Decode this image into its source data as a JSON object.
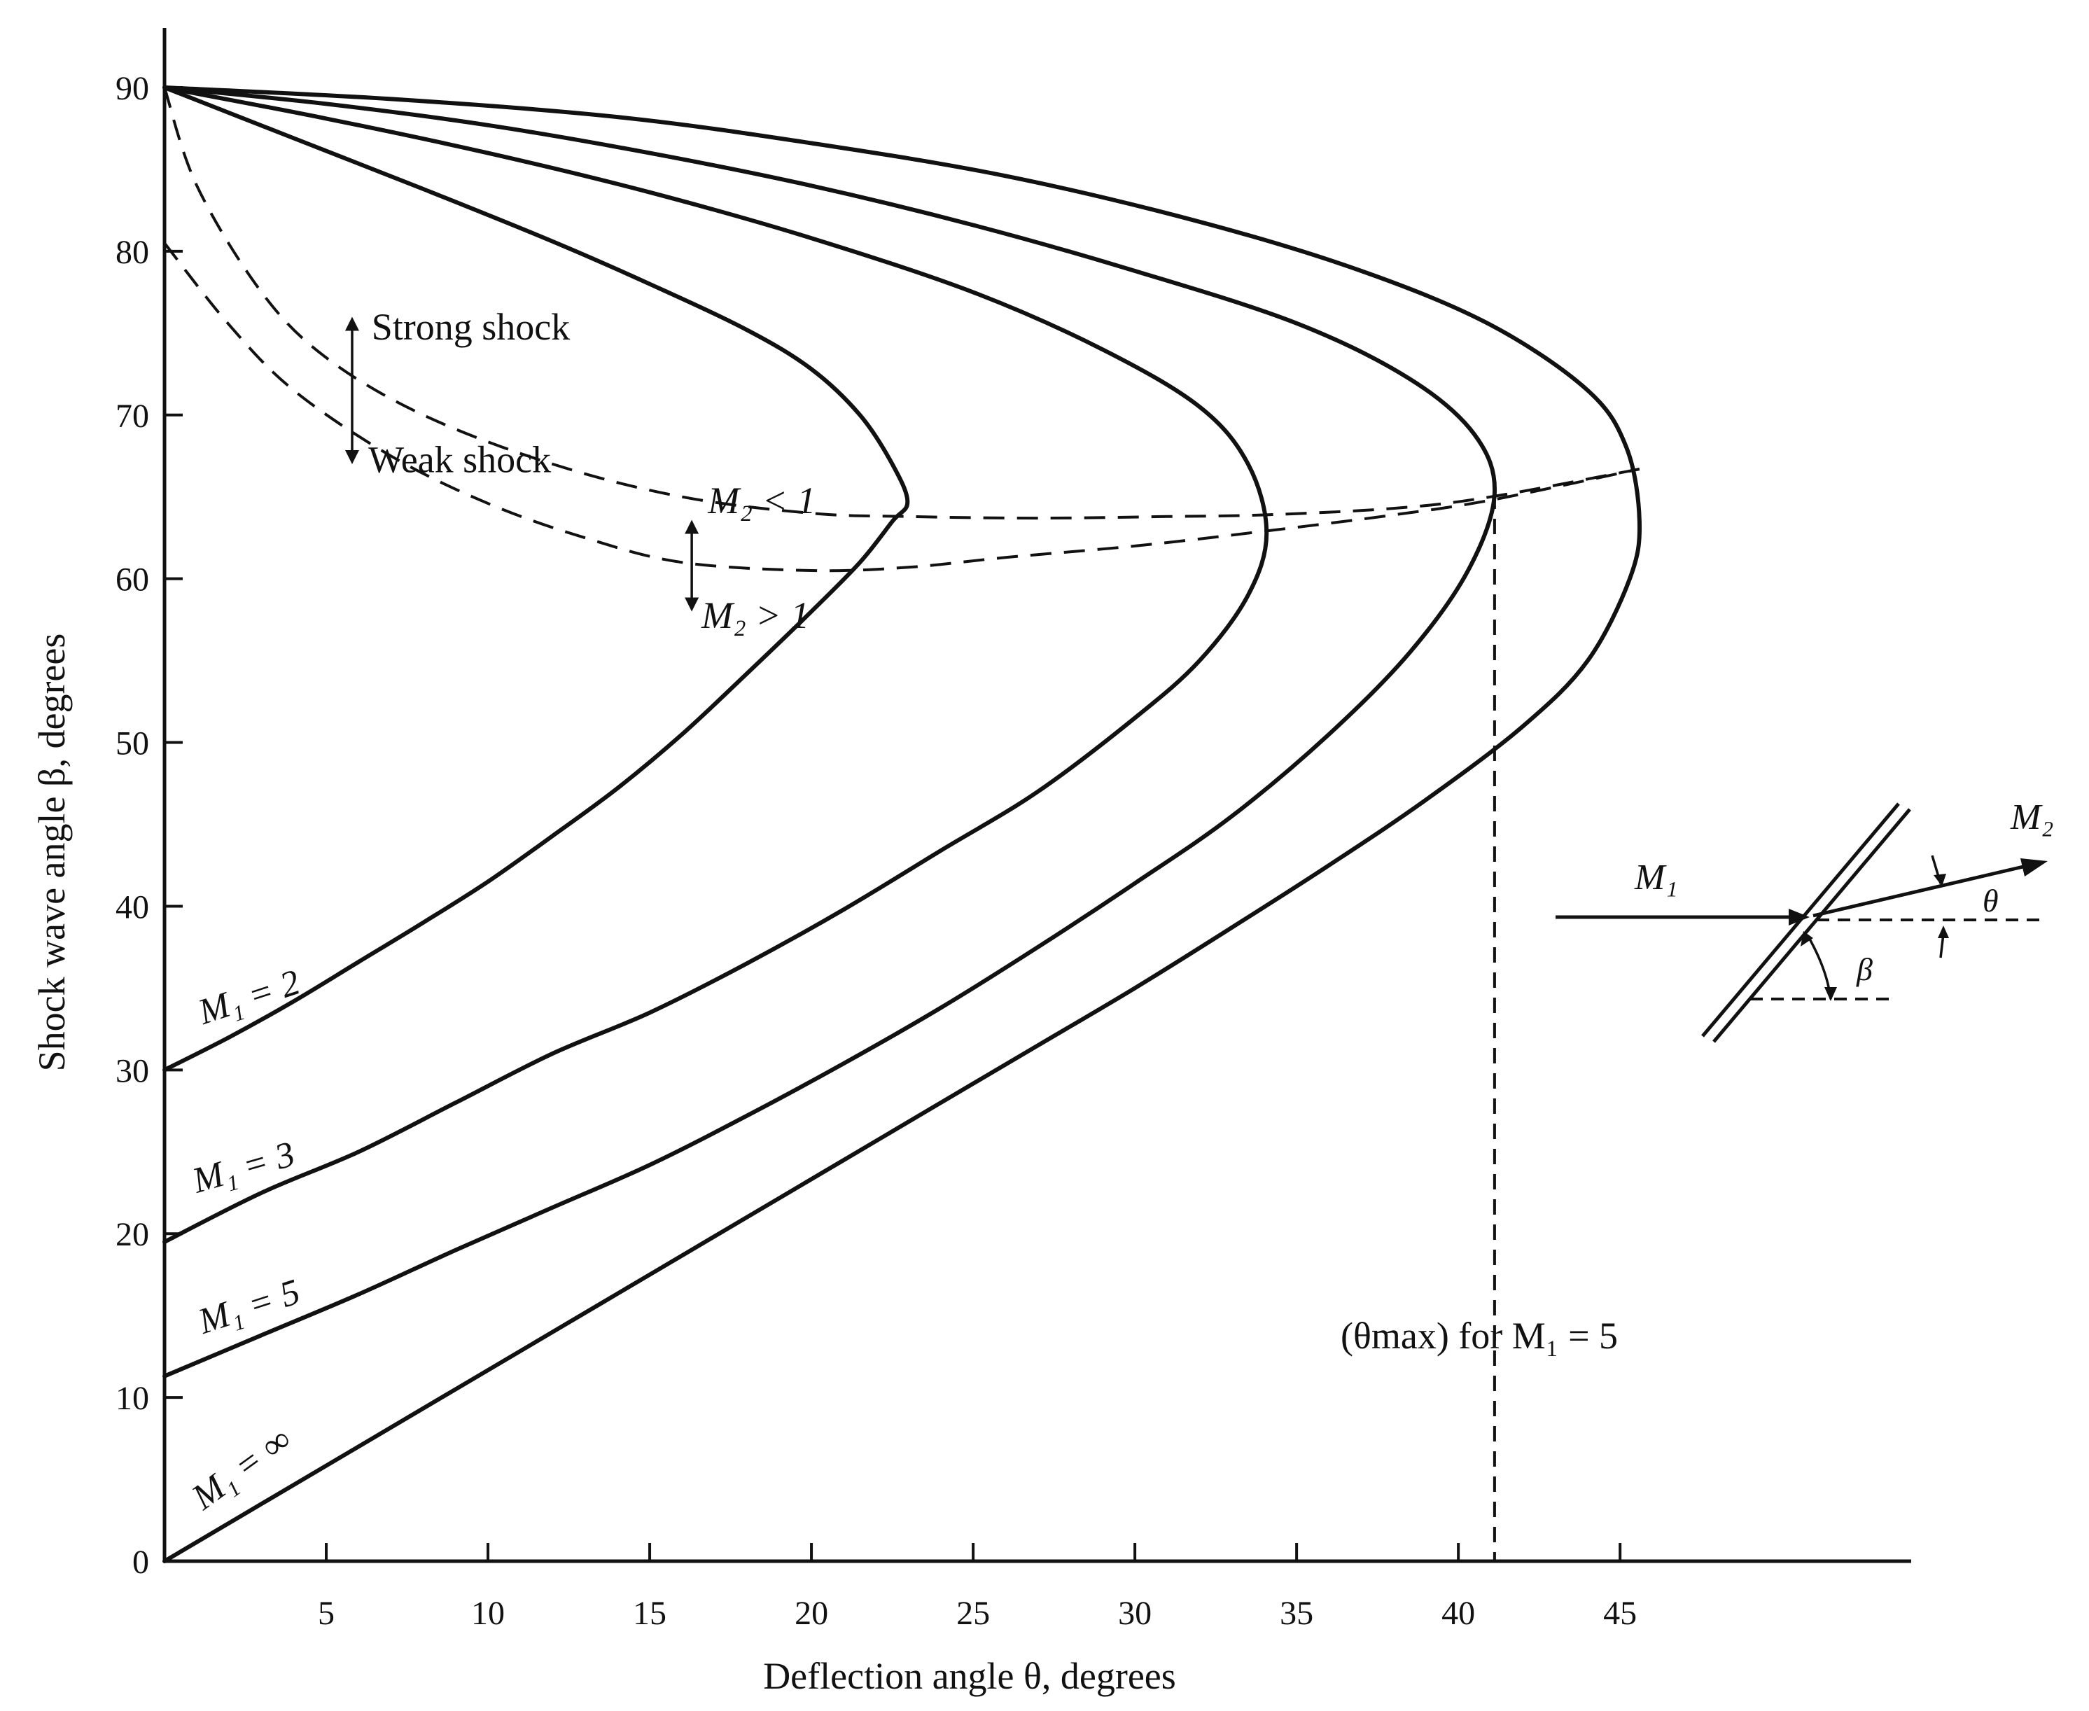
{
  "chart_data": {
    "type": "line",
    "xlabel": "Deflection angle θ, degrees",
    "ylabel": "Shock wave angle β, degrees",
    "x_ticks": [
      5,
      10,
      15,
      20,
      25,
      30,
      35,
      40,
      45
    ],
    "y_ticks": [
      0,
      10,
      20,
      30,
      40,
      50,
      60,
      70,
      80,
      90
    ],
    "xlim": [
      0,
      54
    ],
    "ylim": [
      0,
      90
    ],
    "grid": false,
    "series": [
      {
        "name": "M₁ = 2",
        "label": "M1 = 2",
        "points": [
          [
            0,
            30.0
          ],
          [
            2,
            32.0
          ],
          [
            4,
            34.2
          ],
          [
            6,
            36.6
          ],
          [
            8,
            39.0
          ],
          [
            10,
            41.5
          ],
          [
            12,
            44.3
          ],
          [
            14,
            47.2
          ],
          [
            16,
            50.5
          ],
          [
            18,
            54.2
          ],
          [
            20,
            58.0
          ],
          [
            21.5,
            61.0
          ],
          [
            22.5,
            63.5
          ],
          [
            22.97,
            64.7
          ],
          [
            22.5,
            67.0
          ],
          [
            21.5,
            70.0
          ],
          [
            20,
            72.8
          ],
          [
            18,
            75.2
          ],
          [
            15,
            78.0
          ],
          [
            12,
            80.6
          ],
          [
            8,
            83.8
          ],
          [
            4,
            86.9
          ],
          [
            0,
            90.0
          ]
        ]
      },
      {
        "name": "M₁ = 3",
        "label": "M1 = 3",
        "points": [
          [
            0,
            19.5
          ],
          [
            3,
            22.5
          ],
          [
            6,
            25.0
          ],
          [
            9,
            28.0
          ],
          [
            12,
            31.0
          ],
          [
            15,
            33.5
          ],
          [
            18,
            36.5
          ],
          [
            21,
            39.8
          ],
          [
            24,
            43.4
          ],
          [
            27,
            47.0
          ],
          [
            30,
            51.5
          ],
          [
            32,
            55.0
          ],
          [
            33.5,
            59.0
          ],
          [
            34.07,
            62.8
          ],
          [
            33.5,
            67.0
          ],
          [
            32,
            70.5
          ],
          [
            29,
            74.0
          ],
          [
            25,
            77.5
          ],
          [
            20,
            80.8
          ],
          [
            15,
            83.6
          ],
          [
            10,
            86.0
          ],
          [
            5,
            88.1
          ],
          [
            0,
            90.0
          ]
        ]
      },
      {
        "name": "M₁ = 5",
        "label": "M1 = 5",
        "points": [
          [
            0,
            11.3
          ],
          [
            3,
            13.8
          ],
          [
            6,
            16.3
          ],
          [
            9,
            19.0
          ],
          [
            12,
            21.6
          ],
          [
            15,
            24.2
          ],
          [
            18,
            27.2
          ],
          [
            21,
            30.4
          ],
          [
            24,
            33.8
          ],
          [
            27,
            37.5
          ],
          [
            30,
            41.4
          ],
          [
            33,
            45.5
          ],
          [
            36,
            50.5
          ],
          [
            38.5,
            55.5
          ],
          [
            40.3,
            60.5
          ],
          [
            41.12,
            65.2
          ],
          [
            40.5,
            68.8
          ],
          [
            38.5,
            72.2
          ],
          [
            35,
            75.6
          ],
          [
            30,
            78.8
          ],
          [
            25,
            81.6
          ],
          [
            20,
            84.0
          ],
          [
            15,
            86.0
          ],
          [
            10,
            87.7
          ],
          [
            5,
            89.0
          ],
          [
            0,
            90.0
          ]
        ]
      },
      {
        "name": "M₁ = ∞",
        "label": "M1 = ∞",
        "points": [
          [
            0,
            0.0
          ],
          [
            3,
            3.5
          ],
          [
            6,
            7.0
          ],
          [
            9,
            10.5
          ],
          [
            12,
            14.0
          ],
          [
            15,
            17.5
          ],
          [
            18,
            21.0
          ],
          [
            21,
            24.5
          ],
          [
            24,
            28.0
          ],
          [
            27,
            31.5
          ],
          [
            30,
            35.0
          ],
          [
            33,
            38.7
          ],
          [
            36,
            42.5
          ],
          [
            39,
            46.5
          ],
          [
            42,
            51.0
          ],
          [
            44,
            55.0
          ],
          [
            45.3,
            60.0
          ],
          [
            45.6,
            63.5
          ],
          [
            45.2,
            68.0
          ],
          [
            44,
            71.5
          ],
          [
            41,
            75.5
          ],
          [
            37,
            78.8
          ],
          [
            32,
            81.8
          ],
          [
            26,
            84.6
          ],
          [
            20,
            86.6
          ],
          [
            14,
            88.2
          ],
          [
            7,
            89.3
          ],
          [
            0,
            90.0
          ]
        ]
      }
    ],
    "boundaries": [
      {
        "name": "M₂ = 1",
        "style": "dashed",
        "points": [
          [
            0,
            80.5
          ],
          [
            2,
            75.5
          ],
          [
            4,
            71.5
          ],
          [
            7,
            67.5
          ],
          [
            10,
            64.6
          ],
          [
            13,
            62.5
          ],
          [
            16,
            61.0
          ],
          [
            20,
            60.5
          ],
          [
            23,
            60.7
          ],
          [
            26,
            61.3
          ],
          [
            30,
            62.0
          ],
          [
            34,
            62.9
          ],
          [
            38,
            63.9
          ],
          [
            41,
            64.8
          ],
          [
            45.6,
            66.7
          ]
        ]
      },
      {
        "name": "θmax locus",
        "style": "dashed",
        "points": [
          [
            0,
            90.0
          ],
          [
            1,
            84.0
          ],
          [
            3,
            77.5
          ],
          [
            5,
            73.5
          ],
          [
            8,
            70.0
          ],
          [
            12,
            67.0
          ],
          [
            16,
            65.0
          ],
          [
            20,
            64.0
          ],
          [
            23,
            63.8
          ],
          [
            27,
            63.7
          ],
          [
            31,
            63.8
          ],
          [
            34,
            63.9
          ],
          [
            38,
            64.3
          ],
          [
            41,
            65.0
          ],
          [
            45.6,
            66.7
          ]
        ]
      }
    ],
    "annotations": [
      {
        "text": "Strong shock"
      },
      {
        "text": "Weak shock"
      },
      {
        "text": "M₂ < 1"
      },
      {
        "text": "M₂ > 1"
      },
      {
        "text": "(θmax) for M₁ = 5",
        "x": 41.12
      }
    ],
    "inset": {
      "labels": [
        "M₁",
        "M₂",
        "θ",
        "β"
      ]
    }
  }
}
